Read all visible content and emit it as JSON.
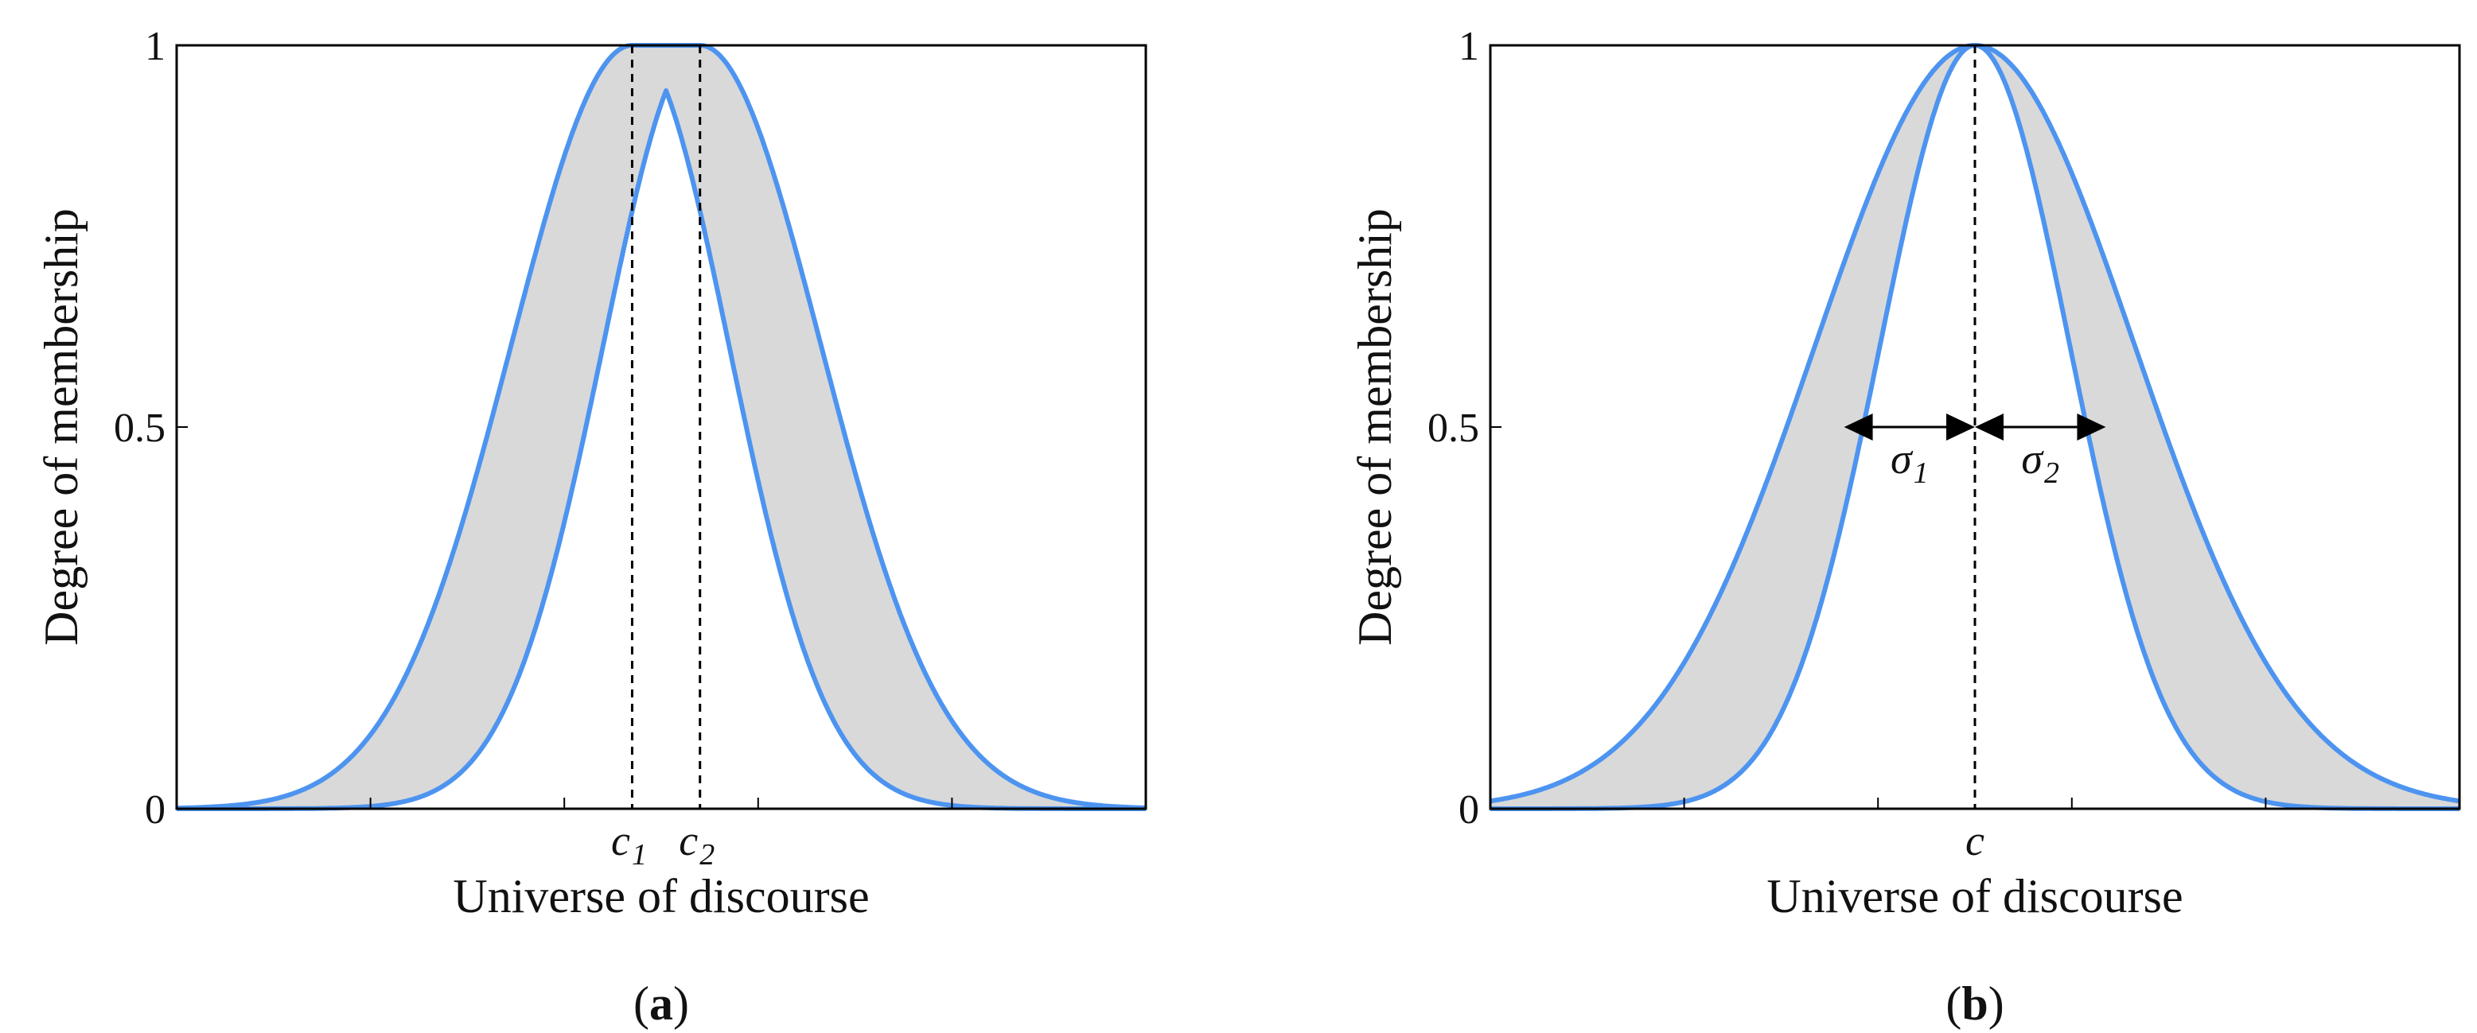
{
  "colors": {
    "curve": "#4d94f0",
    "fill": "#d9d9d9",
    "axis": "#000000",
    "guide": "#000000"
  },
  "chart_data": [
    {
      "type": "area",
      "panel_label": "(a)",
      "panel_letter": "a",
      "xlabel": "Universe of discourse",
      "ylabel": "Degree of membership",
      "ylim": [
        0,
        1
      ],
      "xlim": [
        0,
        10
      ],
      "yticks": [
        0,
        0.5,
        1
      ],
      "ytick_labels": [
        "0",
        "0.5",
        "1"
      ],
      "grid": false,
      "center_labels": [
        {
          "base": "c",
          "sub": "1"
        },
        {
          "base": "c",
          "sub": "2"
        }
      ],
      "series": [
        {
          "role": "upper",
          "shape": "gaussian_flat_top",
          "c1": 4.7,
          "c2": 5.4,
          "sigma": 1.25,
          "x": [
            0,
            1,
            2,
            3,
            4,
            4.7,
            5.4,
            6,
            7,
            8,
            9,
            10
          ],
          "y": [
            0.002,
            0.02,
            0.11,
            0.36,
            0.8,
            1,
            1,
            0.89,
            0.44,
            0.13,
            0.02,
            0.002
          ]
        },
        {
          "role": "lower",
          "shape": "gaussian_min",
          "c1": 4.7,
          "c2": 5.4,
          "sigma": 1.0,
          "x": [
            0,
            1,
            2,
            3,
            4,
            5,
            6,
            7,
            8,
            9,
            10
          ],
          "y": [
            0,
            0.001,
            0.026,
            0.24,
            0.78,
            0.96,
            0.5,
            0.08,
            0.005,
            0,
            0
          ]
        }
      ]
    },
    {
      "type": "area",
      "panel_label": "(b)",
      "panel_letter": "b",
      "xlabel": "Universe of discourse",
      "ylabel": "Degree of membership",
      "ylim": [
        0,
        1
      ],
      "xlim": [
        0,
        10
      ],
      "yticks": [
        0,
        0.5,
        1
      ],
      "ytick_labels": [
        "0",
        "0.5",
        "1"
      ],
      "grid": false,
      "center_label": "c",
      "sigma_labels": [
        {
          "base": "σ",
          "sub": "1"
        },
        {
          "base": "σ",
          "sub": "2"
        }
      ],
      "series": [
        {
          "role": "upper",
          "shape": "gaussian",
          "c": 5.0,
          "sigma": 1.65,
          "x": [
            0,
            1,
            2,
            3,
            4,
            5,
            6,
            7,
            8,
            9,
            10
          ],
          "y": [
            0.01,
            0.05,
            0.19,
            0.48,
            0.83,
            1,
            0.83,
            0.48,
            0.19,
            0.05,
            0.01
          ]
        },
        {
          "role": "lower",
          "shape": "gaussian",
          "c": 5.0,
          "sigma": 0.98,
          "x": [
            0,
            1,
            2,
            3,
            4,
            5,
            6,
            7,
            8,
            9,
            10
          ],
          "y": [
            0,
            0,
            0.01,
            0.12,
            0.59,
            1,
            0.59,
            0.12,
            0.01,
            0,
            0
          ]
        }
      ]
    }
  ]
}
